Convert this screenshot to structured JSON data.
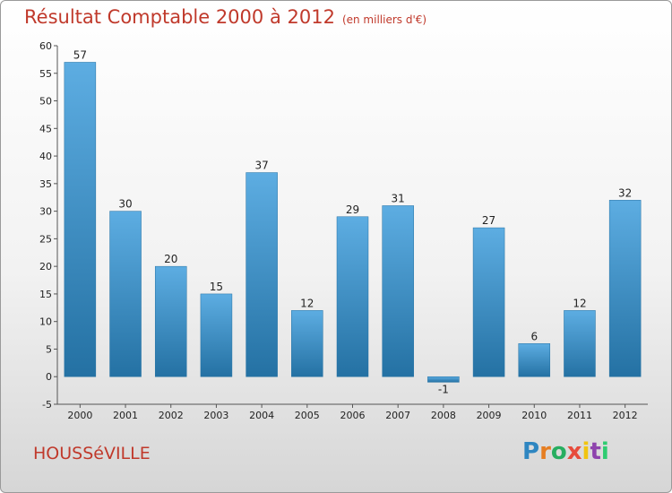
{
  "title": "Résultat Comptable 2000 à 2012",
  "subtitle": "(en milliers d'€)",
  "commune": "HOUSSéVILLE",
  "logo": {
    "letters": [
      "P",
      "r",
      "o",
      "x",
      "i",
      "t",
      "i"
    ],
    "colors": [
      "#2e86c1",
      "#e67e22",
      "#27ae60",
      "#e74c3c",
      "#f1c40f",
      "#8e44ad",
      "#2ecc71"
    ]
  },
  "colors": {
    "bar_top": "#5dade2",
    "bar_bottom": "#2471a3",
    "title": "#c0392b"
  },
  "chart_data": {
    "type": "bar",
    "categories": [
      "2000",
      "2001",
      "2002",
      "2003",
      "2004",
      "2005",
      "2006",
      "2007",
      "2008",
      "2009",
      "2010",
      "2011",
      "2012"
    ],
    "values": [
      57,
      30,
      20,
      15,
      37,
      12,
      29,
      31,
      -1,
      27,
      6,
      12,
      32
    ],
    "value_labels": [
      "57",
      "30",
      "20",
      "15",
      "37",
      "12",
      "29",
      "31",
      "-1",
      "27",
      "6",
      "12",
      "32"
    ],
    "y_ticks": [
      "-5",
      "0",
      "5",
      "10",
      "15",
      "20",
      "25",
      "30",
      "35",
      "40",
      "45",
      "50",
      "55",
      "60"
    ],
    "ylim": [
      -5,
      60
    ],
    "grid": false,
    "legend": "none"
  }
}
